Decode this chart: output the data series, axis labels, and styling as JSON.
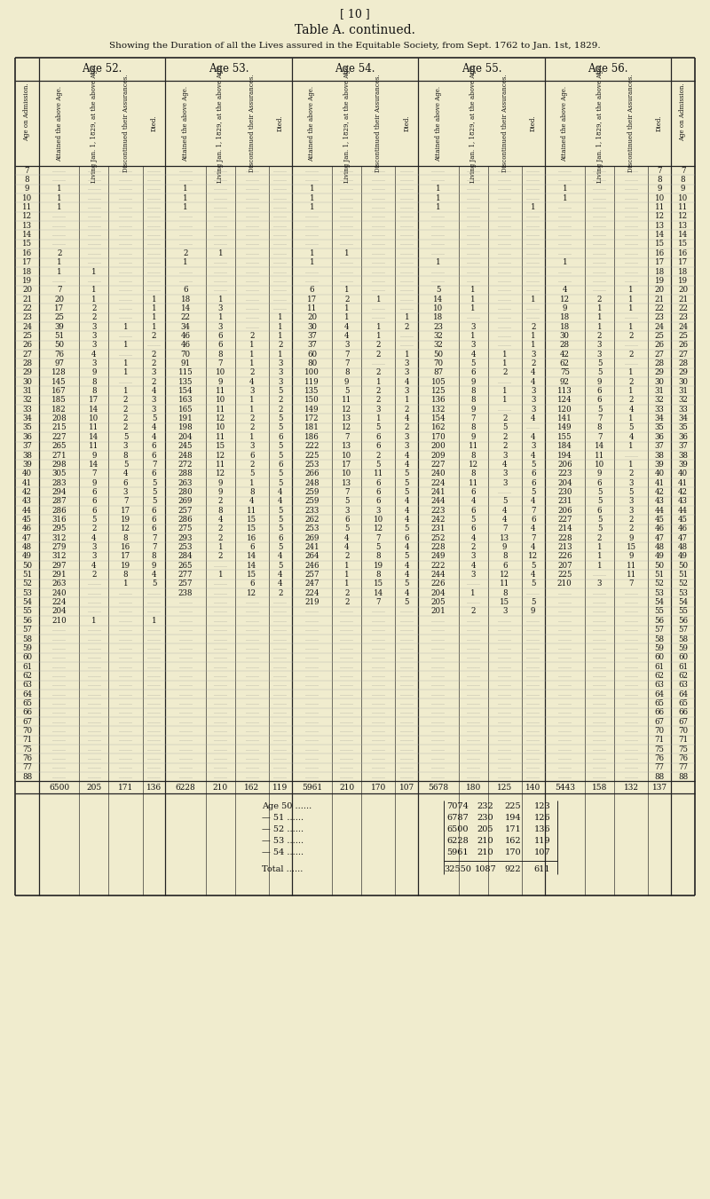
{
  "page_number": "[ 10 ]",
  "title": "Table A. continued.",
  "subtitle": "Showing the Duration of all the Lives assured in the Equitable Society, from Sept. 1762 to Jan. 1st, 1829.",
  "age_groups": [
    "Age 52.",
    "Age 53.",
    "Age 54.",
    "Age 55.",
    "Age 56."
  ],
  "sub_names": [
    "Attained the above Age.",
    "Living Jan. 1, 1829, at the above Age.",
    "Discontinued their Assurances.",
    "Died."
  ],
  "bg_color": "#f0ecce",
  "table_rows": [
    [
      "7",
      "",
      "",
      "",
      "",
      "",
      "",
      "",
      "",
      "",
      "",
      "",
      "",
      "",
      "",
      "",
      "",
      "",
      "",
      "",
      "7"
    ],
    [
      "8",
      "",
      "",
      "",
      "",
      "",
      "",
      "",
      "",
      "",
      "",
      "",
      "",
      "",
      "",
      "",
      "",
      "",
      "",
      "",
      "8"
    ],
    [
      "9",
      "1",
      "",
      "",
      "",
      "1",
      "",
      "",
      "",
      "1",
      "",
      "",
      "",
      "1",
      "",
      "",
      "",
      "1",
      "",
      "",
      "9"
    ],
    [
      "10",
      "1",
      "",
      "",
      "",
      "1",
      "",
      "",
      "",
      "1",
      "",
      "",
      "",
      "1",
      "",
      "",
      "",
      "1",
      "",
      "",
      "10"
    ],
    [
      "11",
      "1",
      "",
      "",
      "",
      "1",
      "",
      "",
      "",
      "1",
      "",
      "",
      "",
      "1",
      "",
      "",
      "1",
      "",
      "",
      "",
      "11"
    ],
    [
      "12",
      "",
      "",
      "",
      "",
      "",
      "",
      "",
      "",
      "",
      "",
      "",
      "",
      "",
      "",
      "",
      "",
      "",
      "",
      "",
      "12"
    ],
    [
      "13",
      "",
      "",
      "",
      "",
      "",
      "",
      "",
      "",
      "",
      "",
      "",
      "",
      "",
      "",
      "",
      "",
      "",
      "",
      "",
      "13"
    ],
    [
      "14",
      "",
      "",
      "",
      "",
      "",
      "",
      "",
      "",
      "",
      "",
      "",
      "",
      "",
      "",
      "",
      "",
      "",
      "",
      "",
      "14"
    ],
    [
      "15",
      "",
      "",
      "",
      "",
      "",
      "",
      "",
      "",
      "",
      "",
      "",
      "",
      "",
      "",
      "",
      "",
      "",
      "",
      "",
      "15"
    ],
    [
      "16",
      "2",
      "",
      "",
      "",
      "2",
      "1",
      "",
      "",
      "1",
      "1",
      "",
      "",
      "",
      "",
      "",
      "",
      "",
      "",
      "",
      "16"
    ],
    [
      "17",
      "1",
      "",
      "",
      "",
      "1",
      "",
      "",
      "",
      "1",
      "",
      "",
      "",
      "1",
      "",
      "",
      "",
      "1",
      "",
      "",
      "17"
    ],
    [
      "18",
      "1",
      "1",
      "",
      "",
      "",
      "",
      "",
      "",
      "",
      "",
      "",
      "",
      "",
      "",
      "",
      "",
      "",
      "",
      "",
      "18"
    ],
    [
      "19",
      "",
      "",
      "",
      "",
      "",
      "",
      "",
      "",
      "",
      "",
      "",
      "",
      "",
      "",
      "",
      "",
      "",
      "",
      "",
      "19"
    ],
    [
      "20",
      "7",
      "1",
      "",
      "",
      "6",
      "",
      "",
      "",
      "6",
      "1",
      "",
      "",
      "5",
      "1",
      "",
      "",
      "4",
      "",
      "1",
      "20"
    ],
    [
      "21",
      "20",
      "1",
      "",
      "1",
      "18",
      "1",
      "",
      "",
      "17",
      "2",
      "1",
      "",
      "14",
      "1",
      "",
      "1",
      "12",
      "2",
      "1",
      "21"
    ],
    [
      "22",
      "17",
      "2",
      "",
      "1",
      "14",
      "3",
      "",
      "",
      "11",
      "1",
      "",
      "",
      "10",
      "1",
      "",
      "",
      "9",
      "1",
      "1",
      "22"
    ],
    [
      "23",
      "25",
      "2",
      "",
      "1",
      "22",
      "1",
      "",
      "1",
      "20",
      "1",
      "",
      "1",
      "18",
      "",
      "",
      "",
      "18",
      "1",
      "",
      "23"
    ],
    [
      "24",
      "39",
      "3",
      "1",
      "1",
      "34",
      "3",
      "",
      "1",
      "30",
      "4",
      "1",
      "2",
      "23",
      "3",
      "",
      "2",
      "18",
      "1",
      "1",
      "24"
    ],
    [
      "25",
      "51",
      "3",
      "",
      "2",
      "46",
      "6",
      "2",
      "1",
      "37",
      "4",
      "1",
      "",
      "32",
      "1",
      "",
      "1",
      "30",
      "2",
      "2",
      "25"
    ],
    [
      "26",
      "50",
      "3",
      "1",
      "",
      "46",
      "6",
      "1",
      "2",
      "37",
      "3",
      "2",
      "",
      "32",
      "3",
      "",
      "1",
      "28",
      "3",
      "",
      "26"
    ],
    [
      "27",
      "76",
      "4",
      "",
      "2",
      "70",
      "8",
      "1",
      "1",
      "60",
      "7",
      "2",
      "1",
      "50",
      "4",
      "1",
      "3",
      "42",
      "3",
      "2",
      "27"
    ],
    [
      "28",
      "97",
      "3",
      "1",
      "2",
      "91",
      "7",
      "1",
      "3",
      "80",
      "7",
      "",
      "3",
      "70",
      "5",
      "1",
      "2",
      "62",
      "5",
      "",
      "28"
    ],
    [
      "29",
      "128",
      "9",
      "1",
      "3",
      "115",
      "10",
      "2",
      "3",
      "100",
      "8",
      "2",
      "3",
      "87",
      "6",
      "2",
      "4",
      "75",
      "5",
      "1",
      "29"
    ],
    [
      "30",
      "145",
      "8",
      "",
      "2",
      "135",
      "9",
      "4",
      "3",
      "119",
      "9",
      "1",
      "4",
      "105",
      "9",
      "",
      "4",
      "92",
      "9",
      "2",
      "30"
    ],
    [
      "31",
      "167",
      "8",
      "1",
      "4",
      "154",
      "11",
      "3",
      "5",
      "135",
      "5",
      "2",
      "3",
      "125",
      "8",
      "1",
      "3",
      "113",
      "6",
      "1",
      "31"
    ],
    [
      "32",
      "185",
      "17",
      "2",
      "3",
      "163",
      "10",
      "1",
      "2",
      "150",
      "11",
      "2",
      "1",
      "136",
      "8",
      "1",
      "3",
      "124",
      "6",
      "2",
      "32"
    ],
    [
      "33",
      "182",
      "14",
      "2",
      "3",
      "165",
      "11",
      "1",
      "2",
      "149",
      "12",
      "3",
      "2",
      "132",
      "9",
      "",
      "3",
      "120",
      "5",
      "4",
      "33"
    ],
    [
      "34",
      "208",
      "10",
      "2",
      "5",
      "191",
      "12",
      "2",
      "5",
      "172",
      "13",
      "1",
      "4",
      "154",
      "7",
      "2",
      "4",
      "141",
      "7",
      "1",
      "34"
    ],
    [
      "35",
      "215",
      "11",
      "2",
      "4",
      "198",
      "10",
      "2",
      "5",
      "181",
      "12",
      "5",
      "2",
      "162",
      "8",
      "5",
      "",
      "149",
      "8",
      "5",
      "35"
    ],
    [
      "36",
      "227",
      "14",
      "5",
      "4",
      "204",
      "11",
      "1",
      "6",
      "186",
      "7",
      "6",
      "3",
      "170",
      "9",
      "2",
      "4",
      "155",
      "7",
      "4",
      "36"
    ],
    [
      "37",
      "265",
      "11",
      "3",
      "6",
      "245",
      "15",
      "3",
      "5",
      "222",
      "13",
      "6",
      "3",
      "200",
      "11",
      "2",
      "3",
      "184",
      "14",
      "1",
      "37"
    ],
    [
      "38",
      "271",
      "9",
      "8",
      "6",
      "248",
      "12",
      "6",
      "5",
      "225",
      "10",
      "2",
      "4",
      "209",
      "8",
      "3",
      "4",
      "194",
      "11",
      "",
      "38"
    ],
    [
      "39",
      "298",
      "14",
      "5",
      "7",
      "272",
      "11",
      "2",
      "6",
      "253",
      "17",
      "5",
      "4",
      "227",
      "12",
      "4",
      "5",
      "206",
      "10",
      "1",
      "39"
    ],
    [
      "40",
      "305",
      "7",
      "4",
      "6",
      "288",
      "12",
      "5",
      "5",
      "266",
      "10",
      "11",
      "5",
      "240",
      "8",
      "3",
      "6",
      "223",
      "9",
      "2",
      "40"
    ],
    [
      "41",
      "283",
      "9",
      "6",
      "5",
      "263",
      "9",
      "1",
      "5",
      "248",
      "13",
      "6",
      "5",
      "224",
      "11",
      "3",
      "6",
      "204",
      "6",
      "3",
      "41"
    ],
    [
      "42",
      "294",
      "6",
      "3",
      "5",
      "280",
      "9",
      "8",
      "4",
      "259",
      "7",
      "6",
      "5",
      "241",
      "6",
      "",
      "5",
      "230",
      "5",
      "5",
      "42"
    ],
    [
      "43",
      "287",
      "6",
      "7",
      "5",
      "269",
      "2",
      "4",
      "4",
      "259",
      "5",
      "6",
      "4",
      "244",
      "4",
      "5",
      "4",
      "231",
      "5",
      "3",
      "43"
    ],
    [
      "44",
      "286",
      "6",
      "17",
      "6",
      "257",
      "8",
      "11",
      "5",
      "233",
      "3",
      "3",
      "4",
      "223",
      "6",
      "4",
      "7",
      "206",
      "6",
      "3",
      "44"
    ],
    [
      "45",
      "316",
      "5",
      "19",
      "6",
      "286",
      "4",
      "15",
      "5",
      "262",
      "6",
      "10",
      "4",
      "242",
      "5",
      "4",
      "6",
      "227",
      "5",
      "2",
      "45"
    ],
    [
      "46",
      "295",
      "2",
      "12",
      "6",
      "275",
      "2",
      "15",
      "5",
      "253",
      "5",
      "12",
      "5",
      "231",
      "6",
      "7",
      "4",
      "214",
      "5",
      "2",
      "46"
    ],
    [
      "47",
      "312",
      "4",
      "8",
      "7",
      "293",
      "2",
      "16",
      "6",
      "269",
      "4",
      "7",
      "6",
      "252",
      "4",
      "13",
      "7",
      "228",
      "2",
      "9",
      "47"
    ],
    [
      "48",
      "279",
      "3",
      "16",
      "7",
      "253",
      "1",
      "6",
      "5",
      "241",
      "4",
      "5",
      "4",
      "228",
      "2",
      "9",
      "4",
      "213",
      "1",
      "15",
      "48"
    ],
    [
      "49",
      "312",
      "3",
      "17",
      "8",
      "284",
      "2",
      "14",
      "4",
      "264",
      "2",
      "8",
      "5",
      "249",
      "3",
      "8",
      "12",
      "226",
      "1",
      "9",
      "49"
    ],
    [
      "50",
      "297",
      "4",
      "19",
      "9",
      "265",
      "",
      "14",
      "5",
      "246",
      "1",
      "19",
      "4",
      "222",
      "4",
      "6",
      "5",
      "207",
      "1",
      "11",
      "50"
    ],
    [
      "51",
      "291",
      "2",
      "8",
      "4",
      "277",
      "1",
      "15",
      "4",
      "257",
      "1",
      "8",
      "4",
      "244",
      "3",
      "12",
      "4",
      "225",
      "",
      "11",
      "51"
    ],
    [
      "52",
      "263",
      "",
      "1",
      "5",
      "257",
      "",
      "6",
      "4",
      "247",
      "1",
      "15",
      "5",
      "226",
      "",
      "11",
      "5",
      "210",
      "3",
      "7",
      "52"
    ],
    [
      "53",
      "240",
      "",
      "",
      "",
      "238",
      "",
      "12",
      "2",
      "224",
      "2",
      "14",
      "4",
      "204",
      "1",
      "8",
      "",
      "",
      "",
      "",
      "53"
    ],
    [
      "54",
      "224",
      "",
      "",
      "",
      "",
      "",
      "",
      "",
      "219",
      "2",
      "7",
      "5",
      "205",
      "",
      "15",
      "5",
      "",
      "",
      "",
      "54"
    ],
    [
      "55",
      "204",
      "",
      "",
      "",
      "",
      "",
      "",
      "",
      "",
      "",
      "",
      "",
      "201",
      "2",
      "3",
      "9",
      "",
      "",
      "",
      "55"
    ],
    [
      "56",
      "210",
      "1",
      "",
      "1",
      "",
      "",
      "",
      "",
      "",
      "",
      "",
      "",
      "",
      "",
      "",
      "",
      "",
      "",
      "",
      "56"
    ],
    [
      "57",
      "",
      "",
      "",
      "",
      "",
      "",
      "",
      "",
      "",
      "",
      "",
      "",
      "",
      "",
      "",
      "",
      "",
      "",
      "",
      "57"
    ],
    [
      "58",
      "",
      "",
      "",
      "",
      "",
      "",
      "",
      "",
      "",
      "",
      "",
      "",
      "",
      "",
      "",
      "",
      "",
      "",
      "",
      "58"
    ],
    [
      "59",
      "",
      "",
      "",
      "",
      "",
      "",
      "",
      "",
      "",
      "",
      "",
      "",
      "",
      "",
      "",
      "",
      "",
      "",
      "",
      "59"
    ],
    [
      "60",
      "",
      "",
      "",
      "",
      "",
      "",
      "",
      "",
      "",
      "",
      "",
      "",
      "",
      "",
      "",
      "",
      "",
      "",
      "",
      "60"
    ],
    [
      "61",
      "",
      "",
      "",
      "",
      "",
      "",
      "",
      "",
      "",
      "",
      "",
      "",
      "",
      "",
      "",
      "",
      "",
      "",
      "",
      "61"
    ],
    [
      "62",
      "",
      "",
      "",
      "",
      "",
      "",
      "",
      "",
      "",
      "",
      "",
      "",
      "",
      "",
      "",
      "",
      "",
      "",
      "",
      "62"
    ],
    [
      "63",
      "",
      "",
      "",
      "",
      "",
      "",
      "",
      "",
      "",
      "",
      "",
      "",
      "",
      "",
      "",
      "",
      "",
      "",
      "",
      "63"
    ],
    [
      "64",
      "",
      "",
      "",
      "",
      "",
      "",
      "",
      "",
      "",
      "",
      "",
      "",
      "",
      "",
      "",
      "",
      "",
      "",
      "",
      "64"
    ],
    [
      "65",
      "",
      "",
      "",
      "",
      "",
      "",
      "",
      "",
      "",
      "",
      "",
      "",
      "",
      "",
      "",
      "",
      "",
      "",
      "",
      "65"
    ],
    [
      "66",
      "",
      "",
      "",
      "",
      "",
      "",
      "",
      "",
      "",
      "",
      "",
      "",
      "",
      "",
      "",
      "",
      "",
      "",
      "",
      "66"
    ],
    [
      "67",
      "",
      "",
      "",
      "",
      "",
      "",
      "",
      "",
      "",
      "",
      "",
      "",
      "",
      "",
      "",
      "",
      "",
      "",
      "",
      "67"
    ],
    [
      "70",
      "",
      "",
      "",
      "",
      "",
      "",
      "",
      "",
      "",
      "",
      "",
      "",
      "",
      "",
      "",
      "",
      "",
      "",
      "",
      "70"
    ],
    [
      "71",
      "",
      "",
      "",
      "",
      "",
      "",
      "",
      "",
      "",
      "",
      "",
      "",
      "",
      "",
      "",
      "",
      "",
      "",
      "",
      "71"
    ],
    [
      "75",
      "",
      "",
      "",
      "",
      "",
      "",
      "",
      "",
      "",
      "",
      "",
      "",
      "",
      "",
      "",
      "",
      "",
      "",
      "",
      "75"
    ],
    [
      "76",
      "",
      "",
      "",
      "",
      "",
      "",
      "",
      "",
      "",
      "",
      "",
      "",
      "",
      "",
      "",
      "",
      "",
      "",
      "",
      "76"
    ],
    [
      "77",
      "",
      "",
      "",
      "",
      "",
      "",
      "",
      "",
      "",
      "",
      "",
      "",
      "",
      "",
      "",
      "",
      "",
      "",
      "",
      "77"
    ],
    [
      "88",
      "",
      "",
      "",
      "",
      "",
      "",
      "",
      "",
      "",
      "",
      "",
      "",
      "",
      "",
      "",
      "",
      "",
      "",
      "",
      "88"
    ]
  ],
  "totals_row": [
    "6500",
    "205",
    "171",
    "136",
    "6228",
    "210",
    "162",
    "119",
    "5961",
    "210",
    "170",
    "107",
    "5678",
    "180",
    "125",
    "140",
    "5443",
    "158",
    "132",
    "137"
  ],
  "summary_rows": [
    [
      "Age 50 ......",
      "7074",
      "232",
      "225",
      "123"
    ],
    [
      "— 51 ......",
      "6787",
      "230",
      "194",
      "126"
    ],
    [
      "— 52 ......",
      "6500",
      "205",
      "171",
      "136"
    ],
    [
      "— 53 ......",
      "6228",
      "210",
      "162",
      "119"
    ],
    [
      "— 54 ......",
      "5961",
      "210",
      "170",
      "107"
    ]
  ],
  "total_row": [
    "Total ......",
    "32550",
    "1087",
    "922",
    "611"
  ]
}
